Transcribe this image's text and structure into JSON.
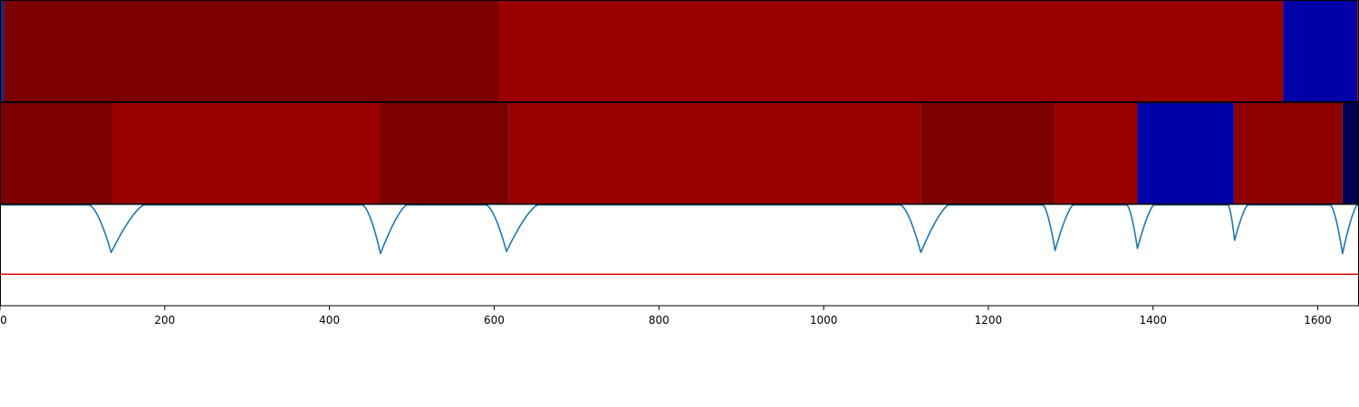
{
  "chart_data": [
    {
      "type": "heatmap",
      "panel": "top",
      "xlim": [
        0,
        1650
      ],
      "segments": [
        {
          "start": 0,
          "end": 5,
          "color": "#1a2a80"
        },
        {
          "start": 5,
          "end": 605,
          "color": "#7d0000"
        },
        {
          "start": 605,
          "end": 1558,
          "color": "#990000"
        },
        {
          "start": 1558,
          "end": 1648,
          "color": "#0000a8"
        },
        {
          "start": 1648,
          "end": 1650,
          "color": "#8c0000"
        }
      ]
    },
    {
      "type": "heatmap",
      "panel": "middle",
      "xlim": [
        0,
        1650
      ],
      "segments": [
        {
          "start": 0,
          "end": 137,
          "color": "#7d0000"
        },
        {
          "start": 137,
          "end": 462,
          "color": "#990000"
        },
        {
          "start": 462,
          "end": 618,
          "color": "#7d0000"
        },
        {
          "start": 618,
          "end": 1118,
          "color": "#990000"
        },
        {
          "start": 1118,
          "end": 1281,
          "color": "#7d0000"
        },
        {
          "start": 1281,
          "end": 1381,
          "color": "#990000"
        },
        {
          "start": 1381,
          "end": 1498,
          "color": "#0000a8"
        },
        {
          "start": 1498,
          "end": 1630,
          "color": "#8c0000"
        },
        {
          "start": 1630,
          "end": 1650,
          "color": "#000050"
        }
      ]
    },
    {
      "type": "line",
      "panel": "bottom",
      "xlim": [
        0,
        1650
      ],
      "ylim": [
        0,
        1
      ],
      "threshold": {
        "y": 0.31,
        "color": "#e00000"
      },
      "series_color": "#1f77b4",
      "baseline": 0.995,
      "dips": [
        {
          "x": 135,
          "depth": 0.47,
          "left_width": 27,
          "right_width": 40
        },
        {
          "x": 462,
          "depth": 0.48,
          "left_width": 22,
          "right_width": 32
        },
        {
          "x": 615,
          "depth": 0.46,
          "left_width": 25,
          "right_width": 38
        },
        {
          "x": 1118,
          "depth": 0.47,
          "left_width": 25,
          "right_width": 34
        },
        {
          "x": 1281,
          "depth": 0.45,
          "left_width": 15,
          "right_width": 22
        },
        {
          "x": 1381,
          "depth": 0.43,
          "left_width": 13,
          "right_width": 20
        },
        {
          "x": 1499,
          "depth": 0.35,
          "left_width": 8,
          "right_width": 16
        },
        {
          "x": 1630,
          "depth": 0.48,
          "left_width": 15,
          "right_width": 18
        }
      ],
      "xticks": [
        0,
        200,
        400,
        600,
        800,
        1000,
        1200,
        1400,
        1600
      ]
    }
  ]
}
